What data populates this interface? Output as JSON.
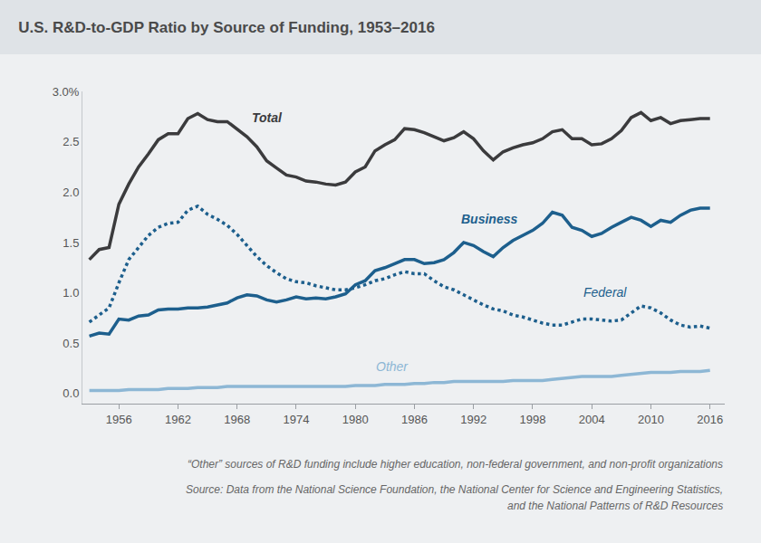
{
  "chart_data": {
    "type": "line",
    "title": "U.S. R&D-to-GDP Ratio by Source of Funding, 1953–2016",
    "annotations": [
      "“Other” sources of R&D funding include higher education, non-federal government, and non-profit organizations",
      "Source: Data from the National Science Foundation, the National Center for Science and Engineering Statistics,",
      "and the National Patterns of R&D Resources"
    ],
    "x": [
      1953,
      1954,
      1955,
      1956,
      1957,
      1958,
      1959,
      1960,
      1961,
      1962,
      1963,
      1964,
      1965,
      1966,
      1967,
      1968,
      1969,
      1970,
      1971,
      1972,
      1973,
      1974,
      1975,
      1976,
      1977,
      1978,
      1979,
      1980,
      1981,
      1982,
      1983,
      1984,
      1985,
      1986,
      1987,
      1988,
      1989,
      1990,
      1991,
      1992,
      1993,
      1994,
      1995,
      1996,
      1997,
      1998,
      1999,
      2000,
      2001,
      2002,
      2003,
      2004,
      2005,
      2006,
      2007,
      2008,
      2009,
      2010,
      2011,
      2012,
      2013,
      2014,
      2015,
      2016
    ],
    "series": [
      {
        "name": "Total",
        "color": "#3b3b3d",
        "line_style": "solid",
        "values": [
          1.33,
          1.43,
          1.45,
          1.88,
          2.08,
          2.25,
          2.38,
          2.52,
          2.58,
          2.58,
          2.73,
          2.78,
          2.72,
          2.7,
          2.7,
          2.62,
          2.55,
          2.45,
          2.31,
          2.24,
          2.17,
          2.15,
          2.11,
          2.1,
          2.08,
          2.07,
          2.1,
          2.2,
          2.25,
          2.41,
          2.47,
          2.52,
          2.63,
          2.62,
          2.59,
          2.55,
          2.51,
          2.54,
          2.6,
          2.53,
          2.41,
          2.32,
          2.4,
          2.44,
          2.47,
          2.49,
          2.53,
          2.6,
          2.62,
          2.53,
          2.53,
          2.47,
          2.48,
          2.53,
          2.61,
          2.74,
          2.79,
          2.71,
          2.74,
          2.68,
          2.71,
          2.72,
          2.73,
          2.73
        ]
      },
      {
        "name": "Business",
        "color": "#1d5f8d",
        "line_style": "solid",
        "values": [
          0.57,
          0.6,
          0.59,
          0.74,
          0.73,
          0.77,
          0.78,
          0.83,
          0.84,
          0.84,
          0.85,
          0.85,
          0.86,
          0.88,
          0.9,
          0.95,
          0.98,
          0.97,
          0.93,
          0.91,
          0.93,
          0.96,
          0.94,
          0.95,
          0.94,
          0.96,
          0.99,
          1.08,
          1.12,
          1.22,
          1.25,
          1.29,
          1.33,
          1.33,
          1.29,
          1.3,
          1.33,
          1.4,
          1.5,
          1.47,
          1.41,
          1.36,
          1.45,
          1.52,
          1.57,
          1.62,
          1.69,
          1.8,
          1.77,
          1.65,
          1.62,
          1.56,
          1.59,
          1.65,
          1.7,
          1.75,
          1.72,
          1.66,
          1.72,
          1.7,
          1.77,
          1.82,
          1.84,
          1.84
        ]
      },
      {
        "name": "Federal",
        "color": "#1d5f8d",
        "line_style": "dotted",
        "values": [
          0.71,
          0.78,
          0.85,
          1.1,
          1.33,
          1.45,
          1.57,
          1.65,
          1.69,
          1.7,
          1.82,
          1.86,
          1.78,
          1.73,
          1.67,
          1.58,
          1.47,
          1.36,
          1.27,
          1.2,
          1.14,
          1.11,
          1.1,
          1.07,
          1.05,
          1.03,
          1.03,
          1.05,
          1.08,
          1.12,
          1.14,
          1.18,
          1.21,
          1.19,
          1.19,
          1.12,
          1.06,
          1.03,
          0.98,
          0.93,
          0.88,
          0.84,
          0.82,
          0.78,
          0.76,
          0.73,
          0.7,
          0.68,
          0.68,
          0.71,
          0.74,
          0.74,
          0.73,
          0.72,
          0.73,
          0.8,
          0.87,
          0.85,
          0.8,
          0.73,
          0.68,
          0.66,
          0.67,
          0.65
        ]
      },
      {
        "name": "Other",
        "color": "#8db7d5",
        "line_style": "solid",
        "values": [
          0.03,
          0.03,
          0.03,
          0.03,
          0.04,
          0.04,
          0.04,
          0.04,
          0.05,
          0.05,
          0.05,
          0.06,
          0.06,
          0.06,
          0.07,
          0.07,
          0.07,
          0.07,
          0.07,
          0.07,
          0.07,
          0.07,
          0.07,
          0.07,
          0.07,
          0.07,
          0.07,
          0.08,
          0.08,
          0.08,
          0.09,
          0.09,
          0.09,
          0.1,
          0.1,
          0.11,
          0.11,
          0.12,
          0.12,
          0.12,
          0.12,
          0.12,
          0.12,
          0.13,
          0.13,
          0.13,
          0.13,
          0.14,
          0.15,
          0.16,
          0.17,
          0.17,
          0.17,
          0.17,
          0.18,
          0.19,
          0.2,
          0.21,
          0.21,
          0.21,
          0.22,
          0.22,
          0.22,
          0.23
        ]
      }
    ],
    "xlim": [
      1952.3,
      2017.5
    ],
    "xticks": [
      1956,
      1962,
      1968,
      1974,
      1980,
      1986,
      1992,
      1998,
      2004,
      2010,
      2016
    ],
    "ylim": [
      -0.1,
      3.0
    ],
    "yticks": [
      {
        "value": 0,
        "label": "0.0"
      },
      {
        "value": 0.5,
        "label": "0.5"
      },
      {
        "value": 1,
        "label": "1.0"
      },
      {
        "value": 1.5,
        "label": "1.5"
      },
      {
        "value": 2,
        "label": "2.0"
      },
      {
        "value": 2.5,
        "label": "2.5"
      },
      {
        "value": 3,
        "label": "3.0%"
      }
    ],
    "grid": false
  }
}
